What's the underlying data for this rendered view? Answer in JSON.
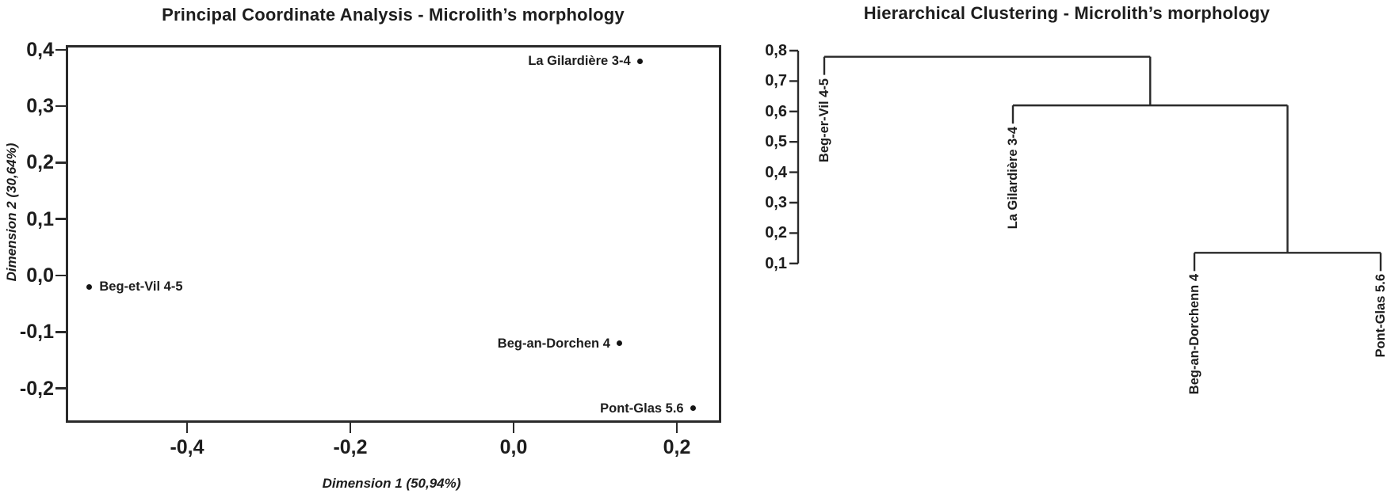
{
  "figure": {
    "background": "#ffffff",
    "ink_color": "#2a2a2a",
    "text_color": "#1d1d1d"
  },
  "chart_data": [
    {
      "type": "scatter",
      "title": "Principal Coordinate Analysis - Microlith’s morphology",
      "xlabel": "Dimension 1 (50,94%)",
      "ylabel": "Dimension 2 (30,64%)",
      "xlim": [
        -0.55,
        0.255
      ],
      "ylim": [
        -0.26,
        0.41
      ],
      "grid": false,
      "legend": false,
      "x_ticks": [
        "-0,4",
        "-0,2",
        "0,0",
        "0,2"
      ],
      "x_tick_values": [
        -0.4,
        -0.2,
        0.0,
        0.2
      ],
      "y_ticks": [
        "0,4",
        "0,3",
        "0,2",
        "0,1",
        "0,0",
        "-0,1",
        "-0,2"
      ],
      "y_tick_values": [
        0.4,
        0.3,
        0.2,
        0.1,
        0.0,
        -0.1,
        -0.2
      ],
      "points": [
        {
          "label": "La Gilardière 3-4",
          "x": 0.155,
          "y": 0.38,
          "label_side": "left"
        },
        {
          "label": "Beg-et-Vil 4-5",
          "x": -0.52,
          "y": -0.02,
          "label_side": "right"
        },
        {
          "label": "Beg-an-Dorchen 4",
          "x": 0.13,
          "y": -0.12,
          "label_side": "left"
        },
        {
          "label": "Pont-Glas 5.6",
          "x": 0.22,
          "y": -0.235,
          "label_side": "left"
        }
      ]
    },
    {
      "type": "dendrogram",
      "title": "Hierarchical Clustering - Microlith’s morphology",
      "axis_range": [
        0.1,
        0.8
      ],
      "y_ticks": [
        "0,8",
        "0,7",
        "0,6",
        "0,5",
        "0,4",
        "0,3",
        "0,2",
        "0,1"
      ],
      "y_tick_values": [
        0.8,
        0.7,
        0.6,
        0.5,
        0.4,
        0.3,
        0.2,
        0.1
      ],
      "leaves": [
        "Beg-er-Vil 4-5",
        "La Gilardière 3-4",
        "Beg-an-Dorchenn 4",
        "Pont-Glas 5.6"
      ],
      "merges": [
        {
          "members": [
            "Beg-an-Dorchenn 4",
            "Pont-Glas 5.6"
          ],
          "height": 0.135
        },
        {
          "members": [
            "La Gilardière 3-4",
            "(Beg-an-Dorchenn 4 + Pont-Glas 5.6)"
          ],
          "height": 0.62
        },
        {
          "members": [
            "Beg-er-Vil 4-5",
            "(La Gilardière 3-4 + Beg-an-Dorchenn 4 + Pont-Glas 5.6)"
          ],
          "height": 0.78
        }
      ],
      "tree": {
        "height": 0.78,
        "children": [
          {
            "leaf": 0
          },
          {
            "height": 0.62,
            "children": [
              {
                "leaf": 1
              },
              {
                "height": 0.135,
                "children": [
                  {
                    "leaf": 2
                  },
                  {
                    "leaf": 3
                  }
                ]
              }
            ]
          }
        ]
      }
    }
  ]
}
